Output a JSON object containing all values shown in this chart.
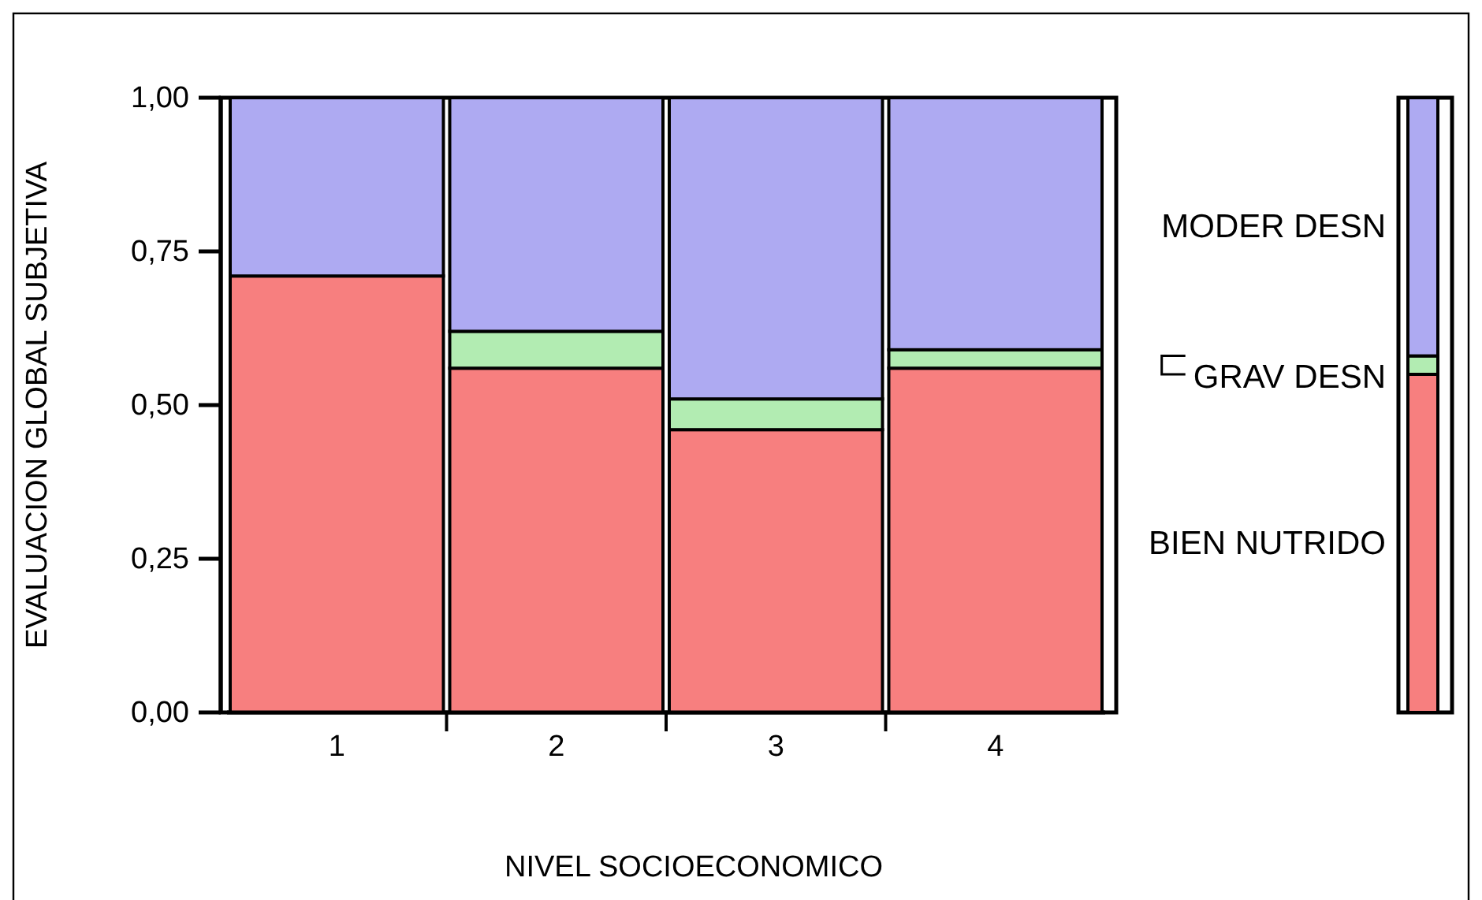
{
  "chart_data": [
    {
      "type": "bar",
      "stacked": true,
      "categories": [
        "1",
        "2",
        "3",
        "4"
      ],
      "series": [
        {
          "color": "#f77f7f",
          "values": [
            0.71,
            0.56,
            0.46,
            0.56
          ]
        },
        {
          "color": "#b2ecb2",
          "values": [
            0,
            0.06,
            0.05,
            0.03
          ]
        },
        {
          "color": "#aeaaf2",
          "values": [
            0.29,
            0.38,
            0.49,
            0.41
          ]
        }
      ],
      "ylim": [
        0,
        1
      ],
      "yticks": [
        {
          "value": 0,
          "label": "0,00"
        },
        {
          "value": 0.25,
          "label": "0,25"
        },
        {
          "value": 0.5,
          "label": "0,50"
        },
        {
          "value": 0.75,
          "label": "0,75"
        },
        {
          "value": 1,
          "label": "1,00"
        }
      ],
      "xlabel": "NIVEL SOCIOECONOMICO",
      "ylabel": "EVALUACION GLOBAL SUBJETIVA"
    },
    {
      "type": "bar",
      "stacked": true,
      "categories": [
        null
      ],
      "series": [
        {
          "name": "BIEN NUTRIDO",
          "color": "#f77f7f",
          "values": [
            0.55
          ]
        },
        {
          "name": "GRAV DESN",
          "color": "#b2ecb2",
          "values": [
            0.03
          ]
        },
        {
          "name": "MODER DESN",
          "color": "#aeaaf2",
          "values": [
            0.42
          ]
        }
      ],
      "ylim": [
        0,
        1
      ],
      "tick_labels": false,
      "legend": "left"
    }
  ]
}
